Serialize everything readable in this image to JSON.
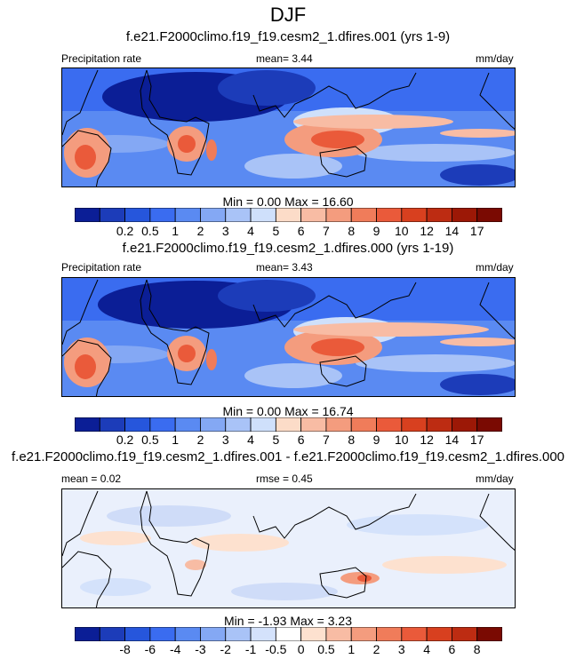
{
  "figure": {
    "title": "DJF"
  },
  "panels": [
    {
      "title": "f.e21.F2000climo.f19_f19.cesm2_1.dfires.001 (yrs 1-9)",
      "left_label": "Precipitation rate",
      "center_label": "mean=   3.44",
      "units": "mm/day",
      "minmax": "Min =   0.00 Max =  16.60",
      "colorbar": {
        "colors": [
          "#0b1e96",
          "#1c3cb9",
          "#2656dc",
          "#3a6cf0",
          "#5a8af2",
          "#84a8f4",
          "#a9c3f7",
          "#cfe0fb",
          "#fcdcc8",
          "#f8bca4",
          "#f49c7e",
          "#f07c5a",
          "#ea5a3a",
          "#d8401f",
          "#bd2c12",
          "#9c1806",
          "#7a0a02"
        ],
        "labels": [
          "0.2",
          "0.5",
          "1",
          "2",
          "3",
          "4",
          "5",
          "6",
          "7",
          "8",
          "9",
          "10",
          "12",
          "14",
          "17"
        ]
      }
    },
    {
      "title": "f.e21.F2000climo.f19_f19.cesm2_1.dfires.000 (yrs 1-19)",
      "left_label": "Precipitation rate",
      "center_label": "mean=   3.43",
      "units": "mm/day",
      "minmax": "Min =   0.00 Max =  16.74",
      "colorbar": {
        "colors": [
          "#0b1e96",
          "#1c3cb9",
          "#2656dc",
          "#3a6cf0",
          "#5a8af2",
          "#84a8f4",
          "#a9c3f7",
          "#cfe0fb",
          "#fcdcc8",
          "#f8bca4",
          "#f49c7e",
          "#f07c5a",
          "#ea5a3a",
          "#d8401f",
          "#bd2c12",
          "#9c1806",
          "#7a0a02"
        ],
        "labels": [
          "0.2",
          "0.5",
          "1",
          "2",
          "3",
          "4",
          "5",
          "6",
          "7",
          "8",
          "9",
          "10",
          "12",
          "14",
          "17"
        ]
      }
    },
    {
      "title": "f.e21.F2000climo.f19_f19.cesm2_1.dfires.001 - f.e21.F2000climo.f19_f19.cesm2_1.dfires.000",
      "left_label": "mean =   0.02",
      "center_label": "rmse =   0.45",
      "units": "mm/day",
      "minmax": "Min =  -1.93 Max =   3.23",
      "colorbar": {
        "colors": [
          "#0b1e96",
          "#1c3cb9",
          "#2656dc",
          "#3a6cf0",
          "#5a8af2",
          "#84a8f4",
          "#a9c3f7",
          "#d4e2fb",
          "#ffffff",
          "#fde1cf",
          "#f8bca4",
          "#f49c7e",
          "#f07c5a",
          "#ea5a3a",
          "#d8401f",
          "#bd2c12",
          "#7a0a02"
        ],
        "labels": [
          "-8",
          "-6",
          "-4",
          "-3",
          "-2",
          "-1",
          "-0.5",
          "0",
          "0.5",
          "1",
          "2",
          "3",
          "4",
          "6",
          "8"
        ]
      }
    }
  ],
  "chart_data": {
    "type": "heatmap",
    "title": "DJF",
    "variable": "Precipitation rate",
    "units": "mm/day",
    "panels": [
      {
        "title": "f.e21.F2000climo.f19_f19.cesm2_1.dfires.001 (yrs 1-9)",
        "mean": 3.44,
        "min": 0.0,
        "max": 16.6,
        "levels": [
          0.2,
          0.5,
          1,
          2,
          3,
          4,
          5,
          6,
          7,
          8,
          9,
          10,
          12,
          14,
          17
        ]
      },
      {
        "title": "f.e21.F2000climo.f19_f19.cesm2_1.dfires.000 (yrs 1-19)",
        "mean": 3.43,
        "min": 0.0,
        "max": 16.74,
        "levels": [
          0.2,
          0.5,
          1,
          2,
          3,
          4,
          5,
          6,
          7,
          8,
          9,
          10,
          12,
          14,
          17
        ]
      },
      {
        "title": "f.e21.F2000climo.f19_f19.cesm2_1.dfires.001 - f.e21.F2000climo.f19_f19.cesm2_1.dfires.000",
        "mean": 0.02,
        "rmse": 0.45,
        "min": -1.93,
        "max": 3.23,
        "levels": [
          -8,
          -6,
          -4,
          -3,
          -2,
          -1,
          -0.5,
          0,
          0.5,
          1,
          2,
          3,
          4,
          6,
          8
        ]
      }
    ]
  }
}
